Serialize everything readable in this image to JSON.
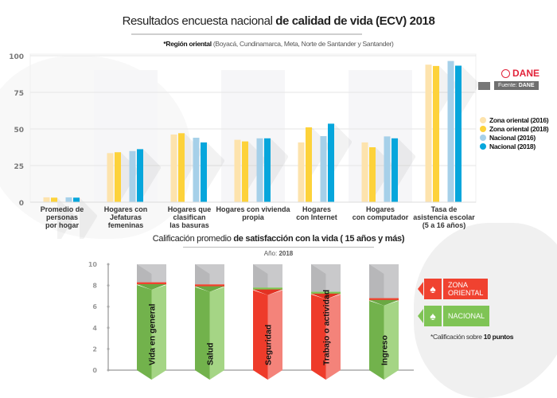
{
  "header": {
    "title_light": "Resultados encuesta nacional ",
    "title_bold": "de calidad de vida (ECV) 2018",
    "region_bold": "*Región oriental",
    "region_detail": " (Boyacá, Cundinamarca, Meta, Norte de Santander y Santander)"
  },
  "source": {
    "logo": "DANE",
    "label": "Fuente: ",
    "label_bold": "DANE",
    "icon": "image-icon"
  },
  "colors": {
    "zona2016": "#fde3ad",
    "zona2018": "#fdd23a",
    "nacional2016": "#a6d0e9",
    "nacional2018": "#06a6dc",
    "red": "#f04230",
    "green": "#7fc455",
    "gray": "#c3c3c5"
  },
  "chart_data": [
    {
      "type": "bar",
      "title": "Resultados encuesta nacional de calidad de vida (ECV) 2018",
      "xlabel": "",
      "ylabel": "",
      "ylim": [
        0,
        100
      ],
      "yticks": [
        0,
        25,
        50,
        75,
        100
      ],
      "grid": true,
      "legend_position": "right",
      "categories": [
        "Promedio de personas por hogar",
        "Hogares con Jefaturas femeninas",
        "Hogares que clasifican las basuras",
        "Hogares con vivienda propia",
        "Hogares con Internet",
        "Hogares con computador",
        "Tasa de asistencia escolar (5 a 16 años)"
      ],
      "category_lines": [
        [
          "Promedio de",
          "personas",
          "por hogar"
        ],
        [
          "Hogares con",
          "Jefaturas",
          "femeninas"
        ],
        [
          "Hogares que",
          "clasifican",
          "las basuras"
        ],
        [
          "Hogares con vivienda",
          "propia"
        ],
        [
          "Hogares",
          "con Internet"
        ],
        [
          "Hogares",
          "con computador"
        ],
        [
          "Tasa de",
          "asistencia escolar",
          "(5 a 16 años)"
        ]
      ],
      "series": [
        {
          "name": "Zona oriental (2016)",
          "color_key": "zona2016",
          "values": [
            3.3,
            33.5,
            46.2,
            42.6,
            40.8,
            40.8,
            93.9
          ]
        },
        {
          "name": "Zona oriental (2018)",
          "color_key": "zona2018",
          "values": [
            3.1,
            34.1,
            47.1,
            41.5,
            51.1,
            37.5,
            93.0
          ]
        },
        {
          "name": "Nacional (2016)",
          "color_key": "nacional2016",
          "values": [
            3.3,
            34.9,
            44.0,
            43.6,
            45.1,
            44.9,
            96.4
          ]
        },
        {
          "name": "Nacional (2018)",
          "color_key": "nacional2018",
          "values": [
            3.1,
            36.2,
            40.8,
            43.6,
            53.6,
            43.6,
            93.2
          ]
        }
      ]
    },
    {
      "type": "bar",
      "title": "Calificación promedio de satisfacción con la vida ( 15 años y más)",
      "title_light": "Calificación promedio ",
      "title_bold": "de satisfacción con la vida ( 15 años y más)",
      "year_label": "Año: ",
      "year": "2018",
      "ylim": [
        0,
        10
      ],
      "yticks": [
        0,
        2,
        4,
        6,
        8,
        10
      ],
      "categories": [
        "Vida en general",
        "Salud",
        "Seguridad",
        "Trabajo o actividad",
        "Ingreso"
      ],
      "series": [
        {
          "name": "Zona oriental",
          "color_key": "red",
          "values": [
            8.3,
            8.1,
            7.7,
            7.3,
            6.8
          ]
        },
        {
          "name": "Nacional",
          "color_key": "green",
          "values": [
            8.2,
            8.0,
            7.8,
            7.4,
            6.7
          ]
        }
      ],
      "legend": [
        {
          "label_lines": [
            "ZONA",
            "ORIENTAL"
          ],
          "color_key": "red"
        },
        {
          "label_lines": [
            "NACIONAL"
          ],
          "color_key": "green"
        }
      ],
      "note_light": "*Calificación sobre ",
      "note_bold": "10 puntos"
    }
  ]
}
